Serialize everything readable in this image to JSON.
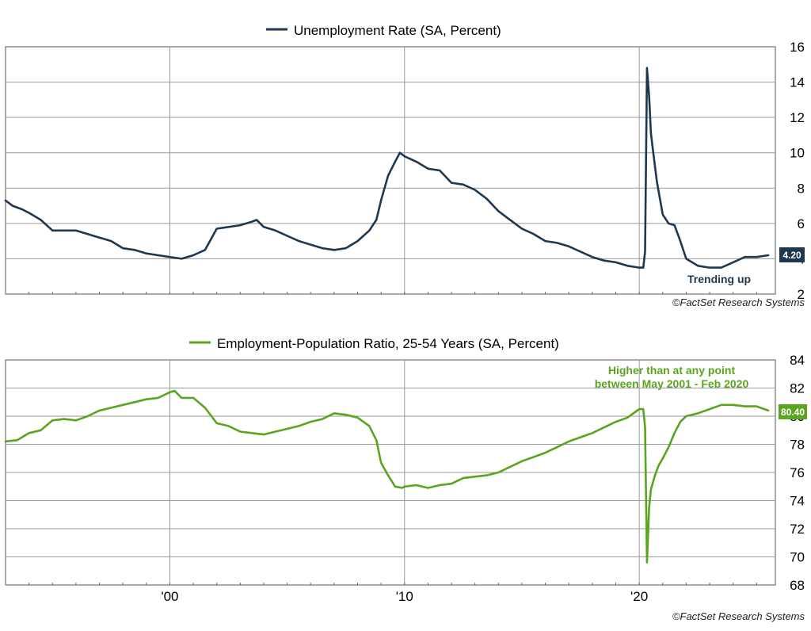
{
  "chart_data": [
    {
      "type": "line",
      "title": "",
      "xlabel": "",
      "ylabel": "",
      "legend": {
        "label": "Unemployment Rate (SA, Percent)",
        "placement": "top-center"
      },
      "xlim": [
        1993.0,
        2025.8
      ],
      "ylim": [
        2,
        16
      ],
      "y_ticks": [
        2,
        4,
        6,
        8,
        10,
        12,
        14,
        16
      ],
      "x_ticks": [],
      "grid": true,
      "last_value_label": "4.20",
      "annotation": "Trending up",
      "source": "©FactSet Research Systems",
      "color": "#1d3850",
      "series": [
        {
          "name": "Unemployment Rate (SA, Percent)",
          "x": [
            1993.0,
            1993.3,
            1993.7,
            1994.0,
            1994.5,
            1995.0,
            1995.5,
            1996.0,
            1996.5,
            1997.0,
            1997.5,
            1998.0,
            1998.5,
            1999.0,
            1999.5,
            2000.0,
            2000.5,
            2001.0,
            2001.5,
            2002.0,
            2002.5,
            2003.0,
            2003.5,
            2003.7,
            2004.0,
            2004.5,
            2005.0,
            2005.5,
            2006.0,
            2006.5,
            2007.0,
            2007.5,
            2008.0,
            2008.5,
            2008.8,
            2009.0,
            2009.3,
            2009.6,
            2009.8,
            2010.0,
            2010.5,
            2011.0,
            2011.5,
            2012.0,
            2012.5,
            2013.0,
            2013.5,
            2014.0,
            2014.5,
            2015.0,
            2015.5,
            2016.0,
            2016.5,
            2017.0,
            2017.5,
            2018.0,
            2018.5,
            2019.0,
            2019.5,
            2020.0,
            2020.17,
            2020.25,
            2020.33,
            2020.42,
            2020.5,
            2020.58,
            2020.75,
            2021.0,
            2021.25,
            2021.5,
            2021.75,
            2022.0,
            2022.5,
            2023.0,
            2023.25,
            2023.5,
            2024.0,
            2024.5,
            2025.0,
            2025.5
          ],
          "values": [
            7.3,
            7.0,
            6.8,
            6.6,
            6.2,
            5.6,
            5.6,
            5.6,
            5.4,
            5.2,
            5.0,
            4.6,
            4.5,
            4.3,
            4.2,
            4.1,
            4.0,
            4.2,
            4.5,
            5.7,
            5.8,
            5.9,
            6.1,
            6.2,
            5.8,
            5.6,
            5.3,
            5.0,
            4.8,
            4.6,
            4.5,
            4.6,
            5.0,
            5.6,
            6.2,
            7.3,
            8.7,
            9.5,
            10.0,
            9.8,
            9.5,
            9.1,
            9.0,
            8.3,
            8.2,
            7.9,
            7.4,
            6.7,
            6.2,
            5.7,
            5.4,
            5.0,
            4.9,
            4.7,
            4.4,
            4.1,
            3.9,
            3.8,
            3.6,
            3.5,
            3.5,
            4.4,
            14.8,
            13.2,
            11.1,
            10.2,
            8.4,
            6.5,
            6.0,
            5.9,
            5.0,
            4.0,
            3.6,
            3.5,
            3.5,
            3.5,
            3.8,
            4.1,
            4.1,
            4.2
          ]
        }
      ]
    },
    {
      "type": "line",
      "title": "",
      "xlabel": "",
      "ylabel": "",
      "legend": {
        "label": "Employment-Population Ratio, 25-54 Years (SA, Percent)",
        "placement": "top-center"
      },
      "xlim": [
        1993.0,
        2025.8
      ],
      "ylim": [
        68,
        84
      ],
      "y_ticks": [
        68,
        70,
        72,
        74,
        76,
        78,
        80,
        82,
        84
      ],
      "x_ticks": [
        {
          "value": 2000,
          "label": "'00"
        },
        {
          "value": 2010,
          "label": "'10"
        },
        {
          "value": 2020,
          "label": "'20"
        }
      ],
      "grid": true,
      "last_value_label": "80.40",
      "annotation_lines": [
        "Higher than at any point",
        "between May 2001 - Feb 2020"
      ],
      "source": "©FactSet Research Systems",
      "color": "#5aa51f",
      "series": [
        {
          "name": "Employment-Population Ratio, 25-54 Years (SA, Percent)",
          "x": [
            1993.0,
            1993.5,
            1994.0,
            1994.5,
            1995.0,
            1995.5,
            1996.0,
            1996.5,
            1997.0,
            1997.5,
            1998.0,
            1998.5,
            1999.0,
            1999.5,
            2000.0,
            2000.2,
            2000.5,
            2001.0,
            2001.5,
            2002.0,
            2002.5,
            2003.0,
            2003.5,
            2004.0,
            2004.5,
            2005.0,
            2005.5,
            2006.0,
            2006.5,
            2007.0,
            2007.5,
            2008.0,
            2008.5,
            2008.8,
            2009.0,
            2009.3,
            2009.6,
            2009.9,
            2010.0,
            2010.5,
            2011.0,
            2011.5,
            2012.0,
            2012.5,
            2013.0,
            2013.5,
            2014.0,
            2014.5,
            2015.0,
            2015.5,
            2016.0,
            2016.5,
            2017.0,
            2017.5,
            2018.0,
            2018.5,
            2019.0,
            2019.5,
            2020.0,
            2020.17,
            2020.25,
            2020.33,
            2020.42,
            2020.5,
            2020.67,
            2020.83,
            2021.0,
            2021.25,
            2021.5,
            2021.75,
            2022.0,
            2022.5,
            2023.0,
            2023.5,
            2024.0,
            2024.5,
            2025.0,
            2025.5
          ],
          "values": [
            78.2,
            78.3,
            78.8,
            79.0,
            79.7,
            79.8,
            79.7,
            80.0,
            80.4,
            80.6,
            80.8,
            81.0,
            81.2,
            81.3,
            81.7,
            81.8,
            81.3,
            81.3,
            80.6,
            79.5,
            79.3,
            78.9,
            78.8,
            78.7,
            78.9,
            79.1,
            79.3,
            79.6,
            79.8,
            80.2,
            80.1,
            79.9,
            79.3,
            78.3,
            76.7,
            75.8,
            75.0,
            74.9,
            75.0,
            75.1,
            74.9,
            75.1,
            75.2,
            75.6,
            75.7,
            75.8,
            76.0,
            76.4,
            76.8,
            77.1,
            77.4,
            77.8,
            78.2,
            78.5,
            78.8,
            79.2,
            79.6,
            79.9,
            80.5,
            80.5,
            79.2,
            69.6,
            73.5,
            74.8,
            75.8,
            76.5,
            77.0,
            77.8,
            78.8,
            79.6,
            80.0,
            80.2,
            80.5,
            80.8,
            80.8,
            80.7,
            80.7,
            80.4
          ]
        }
      ]
    }
  ]
}
